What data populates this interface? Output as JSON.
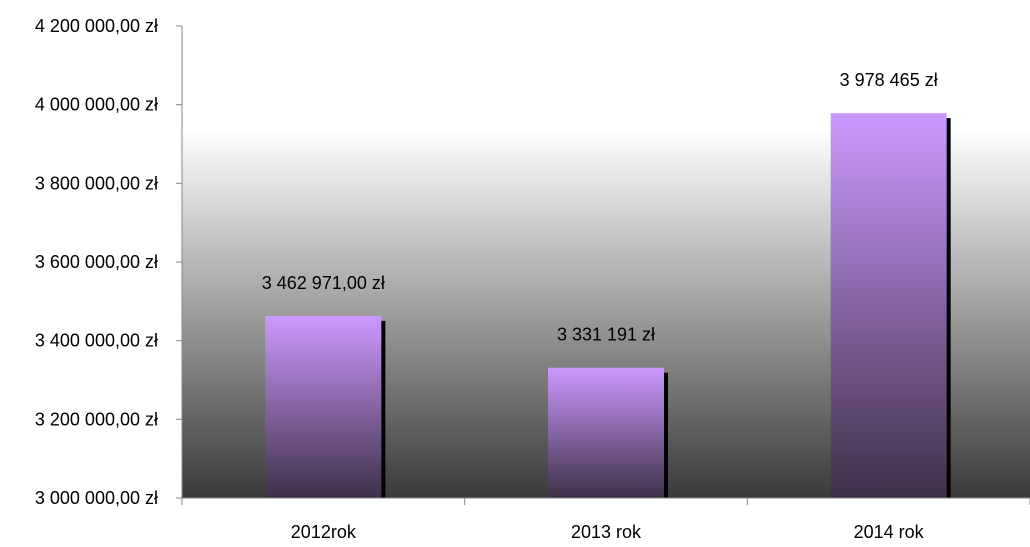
{
  "chart_data": {
    "type": "bar",
    "categories": [
      "2012rok",
      "2013 rok",
      "2014 rok"
    ],
    "values": [
      3462971.0,
      3331191,
      3978465
    ],
    "data_labels": [
      "3 462 971,00 zł",
      "3 331 191 zł",
      "3 978 465 zł"
    ],
    "y_ticks": [
      {
        "value": 3000000,
        "label": "3 000 000,00 zł"
      },
      {
        "value": 3200000,
        "label": "3 200 000,00 zł"
      },
      {
        "value": 3400000,
        "label": "3 400 000,00 zł"
      },
      {
        "value": 3600000,
        "label": "3 600 000,00 zł"
      },
      {
        "value": 3800000,
        "label": "3 800 000,00 zł"
      },
      {
        "value": 4000000,
        "label": "4 000 000,00 zł"
      },
      {
        "value": 4200000,
        "label": "4 200 000,00 zł"
      }
    ],
    "ylim": [
      3000000,
      4200000
    ],
    "title": "",
    "xlabel": "",
    "ylabel": "",
    "grid": false,
    "legend": "none",
    "colors": {
      "bar_top": "#cc99ff",
      "bar_bottom": "#3f3048",
      "bar_shadow": "#000000",
      "plot_bg_top": "#ffffff",
      "plot_bg_bottom": "#3a3a3a",
      "axis": "#868686"
    }
  }
}
